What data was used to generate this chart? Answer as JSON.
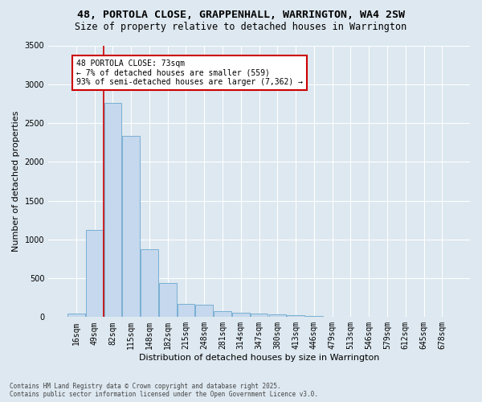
{
  "title_line1": "48, PORTOLA CLOSE, GRAPPENHALL, WARRINGTON, WA4 2SW",
  "title_line2": "Size of property relative to detached houses in Warrington",
  "xlabel": "Distribution of detached houses by size in Warrington",
  "ylabel": "Number of detached properties",
  "bar_color": "#c5d8ed",
  "bar_edge_color": "#7aafd4",
  "background_color": "#dde8f0",
  "grid_color": "#ffffff",
  "categories": [
    "16sqm",
    "49sqm",
    "82sqm",
    "115sqm",
    "148sqm",
    "182sqm",
    "215sqm",
    "248sqm",
    "281sqm",
    "314sqm",
    "347sqm",
    "380sqm",
    "413sqm",
    "446sqm",
    "479sqm",
    "513sqm",
    "546sqm",
    "579sqm",
    "612sqm",
    "645sqm",
    "678sqm"
  ],
  "values": [
    50,
    1120,
    2760,
    2330,
    870,
    440,
    165,
    155,
    80,
    55,
    40,
    35,
    20,
    15,
    8,
    5,
    3,
    2,
    1,
    1,
    0
  ],
  "ylim": [
    0,
    3500
  ],
  "yticks": [
    0,
    500,
    1000,
    1500,
    2000,
    2500,
    3000,
    3500
  ],
  "red_line_x": 1.5,
  "annotation_text": "48 PORTOLA CLOSE: 73sqm\n← 7% of detached houses are smaller (559)\n93% of semi-detached houses are larger (7,362) →",
  "annotation_box_color": "#ffffff",
  "annotation_border_color": "#cc0000",
  "footer_line1": "Contains HM Land Registry data © Crown copyright and database right 2025.",
  "footer_line2": "Contains public sector information licensed under the Open Government Licence v3.0.",
  "title_fontsize": 9.5,
  "subtitle_fontsize": 8.5,
  "tick_fontsize": 7,
  "ylabel_fontsize": 8,
  "xlabel_fontsize": 8,
  "annotation_fontsize": 7,
  "footer_fontsize": 5.5
}
